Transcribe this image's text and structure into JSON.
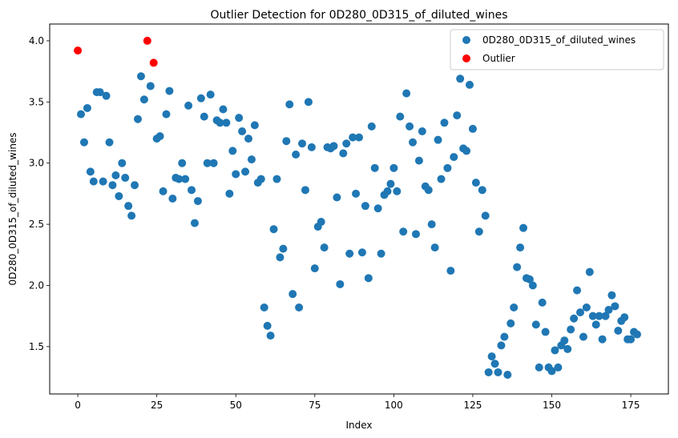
{
  "chart_data": {
    "type": "scatter",
    "title": "Outlier Detection for 0D280_0D315_of_diluted_wines",
    "xlabel": "Index",
    "ylabel": "0D280_0D315_of_diluted_wines",
    "xlim": [
      -8.9,
      186.9
    ],
    "ylim": [
      1.113,
      4.137
    ],
    "xticks": [
      0,
      25,
      50,
      75,
      100,
      125,
      150,
      175
    ],
    "yticks": [
      1.5,
      2.0,
      2.5,
      3.0,
      3.5,
      4.0
    ],
    "ytick_labels": [
      "1.5",
      "2.0",
      "2.5",
      "3.0",
      "3.5",
      "4.0"
    ],
    "grid": false,
    "legend_position": "top-right",
    "series": [
      {
        "name": "0D280_0D315_of_diluted_wines",
        "color": "#1f77b4",
        "x": [
          1,
          2,
          3,
          4,
          5,
          6,
          7,
          8,
          9,
          10,
          11,
          12,
          13,
          14,
          15,
          16,
          17,
          18,
          19,
          20,
          21,
          23,
          25,
          26,
          27,
          28,
          29,
          30,
          31,
          32,
          33,
          34,
          35,
          36,
          37,
          38,
          39,
          40,
          41,
          42,
          43,
          44,
          45,
          46,
          47,
          48,
          49,
          50,
          51,
          52,
          53,
          54,
          55,
          56,
          57,
          58,
          59,
          60,
          61,
          62,
          63,
          64,
          65,
          66,
          67,
          68,
          69,
          70,
          71,
          72,
          73,
          74,
          75,
          76,
          77,
          78,
          79,
          80,
          81,
          82,
          83,
          84,
          85,
          86,
          87,
          88,
          89,
          90,
          91,
          92,
          93,
          94,
          95,
          96,
          97,
          98,
          99,
          100,
          101,
          102,
          103,
          104,
          105,
          106,
          107,
          108,
          109,
          110,
          111,
          112,
          113,
          114,
          115,
          116,
          117,
          118,
          119,
          120,
          121,
          122,
          123,
          124,
          125,
          126,
          127,
          128,
          129,
          130,
          131,
          132,
          133,
          134,
          135,
          136,
          137,
          138,
          139,
          140,
          141,
          142,
          143,
          144,
          145,
          146,
          147,
          148,
          149,
          150,
          151,
          152,
          153,
          154,
          155,
          156,
          157,
          158,
          159,
          160,
          161,
          162,
          163,
          164,
          165,
          166,
          167,
          168,
          169,
          170,
          171,
          172,
          173,
          174,
          175,
          176,
          177
        ],
        "y": [
          3.4,
          3.17,
          3.45,
          2.93,
          2.85,
          3.58,
          3.58,
          2.85,
          3.55,
          3.17,
          2.82,
          2.9,
          2.73,
          3.0,
          2.88,
          2.65,
          2.57,
          2.82,
          3.36,
          3.71,
          3.52,
          3.63,
          3.2,
          3.22,
          2.77,
          3.4,
          3.59,
          2.71,
          2.88,
          2.87,
          3.0,
          2.87,
          3.47,
          2.78,
          2.51,
          2.69,
          3.53,
          3.38,
          3.0,
          3.56,
          3.0,
          3.35,
          3.33,
          3.44,
          3.33,
          2.75,
          3.1,
          2.91,
          3.37,
          3.26,
          2.93,
          3.2,
          3.03,
          3.31,
          2.84,
          2.87,
          1.82,
          1.67,
          1.59,
          2.46,
          2.87,
          2.23,
          2.3,
          3.18,
          3.48,
          1.93,
          3.07,
          1.82,
          3.16,
          2.78,
          3.5,
          3.13,
          2.14,
          2.48,
          2.52,
          2.31,
          3.13,
          3.12,
          3.14,
          2.72,
          2.01,
          3.08,
          3.16,
          2.26,
          3.21,
          2.75,
          3.21,
          2.27,
          2.65,
          2.06,
          3.3,
          2.96,
          2.63,
          2.26,
          2.74,
          2.77,
          2.83,
          2.96,
          2.77,
          3.38,
          2.44,
          3.57,
          3.3,
          3.17,
          2.42,
          3.02,
          3.26,
          2.81,
          2.78,
          2.5,
          2.31,
          3.19,
          2.87,
          3.33,
          2.96,
          2.12,
          3.05,
          3.39,
          3.69,
          3.12,
          3.1,
          3.64,
          3.28,
          2.84,
          2.44,
          2.78,
          2.57,
          1.29,
          1.42,
          1.36,
          1.29,
          1.51,
          1.58,
          1.27,
          1.69,
          1.82,
          2.15,
          2.31,
          2.47,
          2.06,
          2.05,
          2.0,
          1.68,
          1.33,
          1.86,
          1.62,
          1.33,
          1.3,
          1.47,
          1.33,
          1.51,
          1.55,
          1.48,
          1.64,
          1.73,
          1.96,
          1.78,
          1.58,
          1.82,
          2.11,
          1.75,
          1.68,
          1.75,
          1.56,
          1.75,
          1.8,
          1.92,
          1.83,
          1.63,
          1.71,
          1.74,
          1.56,
          1.56,
          1.62,
          1.6
        ]
      },
      {
        "name": "Outlier",
        "color": "#ff0000",
        "x": [
          0,
          22,
          24
        ],
        "y": [
          3.92,
          4.0,
          3.82
        ]
      }
    ]
  }
}
